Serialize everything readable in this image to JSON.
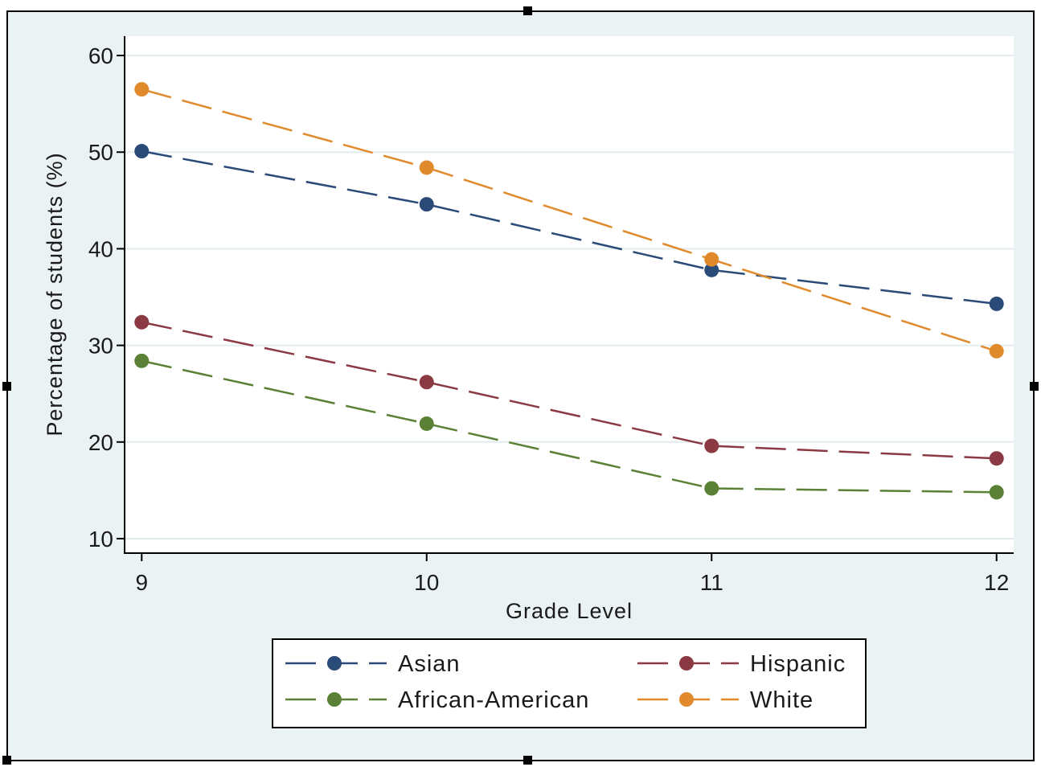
{
  "chart_data": {
    "type": "line",
    "title": "",
    "xlabel": "Grade Level",
    "ylabel": "Percentage of students (%)",
    "x": [
      9,
      10,
      11,
      12
    ],
    "x_ticks": [
      "9",
      "10",
      "11",
      "12"
    ],
    "y_ticks": [
      "10",
      "20",
      "30",
      "40",
      "50",
      "60"
    ],
    "ylim": [
      8.5,
      62
    ],
    "xlim": [
      8.94,
      12.06
    ],
    "grid": true,
    "legend_position": "bottom",
    "line_style": "dashed",
    "series": [
      {
        "name": "Asian",
        "color": "#2a4a78",
        "values": [
          50.1,
          44.6,
          37.8,
          34.3
        ]
      },
      {
        "name": "Hispanic",
        "color": "#8b3a44",
        "values": [
          32.4,
          26.2,
          19.6,
          18.3
        ]
      },
      {
        "name": "African-American",
        "color": "#5a8135",
        "values": [
          28.4,
          21.9,
          15.2,
          14.8
        ]
      },
      {
        "name": "White",
        "color": "#e08a2c",
        "values": [
          56.5,
          48.4,
          38.9,
          29.4
        ]
      }
    ],
    "background_color": "#eaf2f3",
    "plot_background_color": "#ffffff"
  }
}
